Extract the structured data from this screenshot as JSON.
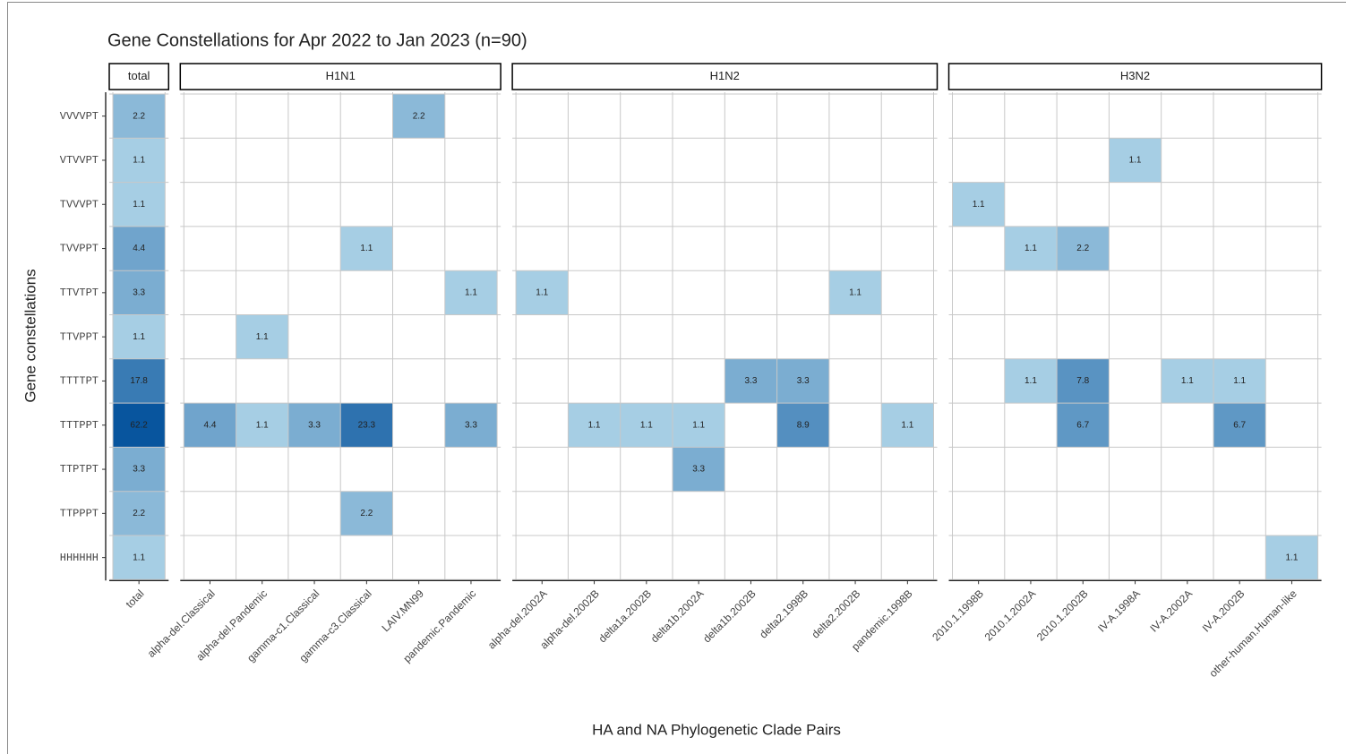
{
  "chart_data": {
    "type": "heatmap",
    "title": "Gene Constellations for Apr 2022 to Jan 2023 (n=90)",
    "x_label": "HA and NA Phylogenetic Clade Pairs",
    "y_label": "Gene constellations",
    "rows": [
      "VVVVPT",
      "VTVVPT",
      "TVVVPT",
      "TVVPPT",
      "TTVTPT",
      "TTVPPT",
      "TTTTPT",
      "TTTPPT",
      "TTPTPT",
      "TTPPPT",
      "HHHHHH"
    ],
    "color_low": "#a6cee4",
    "color_high": "#08559e",
    "log_color_scale": true,
    "facets": [
      {
        "name": "total",
        "columns": [
          "total"
        ],
        "values": [
          [
            2.2
          ],
          [
            1.1
          ],
          [
            1.1
          ],
          [
            4.4
          ],
          [
            3.3
          ],
          [
            1.1
          ],
          [
            17.8
          ],
          [
            62.2
          ],
          [
            3.3
          ],
          [
            2.2
          ],
          [
            1.1
          ]
        ]
      },
      {
        "name": "H1N1",
        "columns": [
          "alpha-del.Classical",
          "alpha-del.Pandemic",
          "gamma-c1.Classical",
          "gamma-c3.Classical",
          "LAIV.MN99",
          "pandemic.Pandemic"
        ],
        "values": [
          [
            null,
            null,
            null,
            null,
            2.2,
            null
          ],
          [
            null,
            null,
            null,
            null,
            null,
            null
          ],
          [
            null,
            null,
            null,
            null,
            null,
            null
          ],
          [
            null,
            null,
            null,
            1.1,
            null,
            null
          ],
          [
            null,
            null,
            null,
            null,
            null,
            1.1
          ],
          [
            null,
            1.1,
            null,
            null,
            null,
            null
          ],
          [
            null,
            null,
            null,
            null,
            null,
            null
          ],
          [
            4.4,
            1.1,
            3.3,
            23.3,
            null,
            3.3
          ],
          [
            null,
            null,
            null,
            null,
            null,
            null
          ],
          [
            null,
            null,
            null,
            2.2,
            null,
            null
          ],
          [
            null,
            null,
            null,
            null,
            null,
            null
          ]
        ]
      },
      {
        "name": "H1N2",
        "columns": [
          "alpha-del.2002A",
          "alpha-del.2002B",
          "delta1a.2002B",
          "delta1b.2002A",
          "delta1b.2002B",
          "delta2.1998B",
          "delta2.2002B",
          "pandemic.1998B"
        ],
        "values": [
          [
            null,
            null,
            null,
            null,
            null,
            null,
            null,
            null
          ],
          [
            null,
            null,
            null,
            null,
            null,
            null,
            null,
            null
          ],
          [
            null,
            null,
            null,
            null,
            null,
            null,
            null,
            null
          ],
          [
            null,
            null,
            null,
            null,
            null,
            null,
            null,
            null
          ],
          [
            1.1,
            null,
            null,
            null,
            null,
            null,
            1.1,
            null
          ],
          [
            null,
            null,
            null,
            null,
            null,
            null,
            null,
            null
          ],
          [
            null,
            null,
            null,
            null,
            3.3,
            3.3,
            null,
            null
          ],
          [
            null,
            1.1,
            1.1,
            1.1,
            null,
            8.9,
            null,
            1.1
          ],
          [
            null,
            null,
            null,
            3.3,
            null,
            null,
            null,
            null
          ],
          [
            null,
            null,
            null,
            null,
            null,
            null,
            null,
            null
          ],
          [
            null,
            null,
            null,
            null,
            null,
            null,
            null,
            null
          ]
        ]
      },
      {
        "name": "H3N2",
        "columns": [
          "2010.1.1998B",
          "2010.1.2002A",
          "2010.1.2002B",
          "IV-A.1998A",
          "IV-A.2002A",
          "IV-A.2002B",
          "other-human.Human-like"
        ],
        "values": [
          [
            null,
            null,
            null,
            null,
            null,
            null,
            null
          ],
          [
            null,
            null,
            null,
            1.1,
            null,
            null,
            null
          ],
          [
            1.1,
            null,
            null,
            null,
            null,
            null,
            null
          ],
          [
            null,
            1.1,
            2.2,
            null,
            null,
            null,
            null
          ],
          [
            null,
            null,
            null,
            null,
            null,
            null,
            null
          ],
          [
            null,
            null,
            null,
            null,
            null,
            null,
            null
          ],
          [
            null,
            1.1,
            7.8,
            null,
            1.1,
            1.1,
            null
          ],
          [
            null,
            null,
            6.7,
            null,
            null,
            6.7,
            null
          ],
          [
            null,
            null,
            null,
            null,
            null,
            null,
            null
          ],
          [
            null,
            null,
            null,
            null,
            null,
            null,
            null
          ],
          [
            null,
            null,
            null,
            null,
            null,
            null,
            1.1
          ]
        ]
      }
    ]
  }
}
